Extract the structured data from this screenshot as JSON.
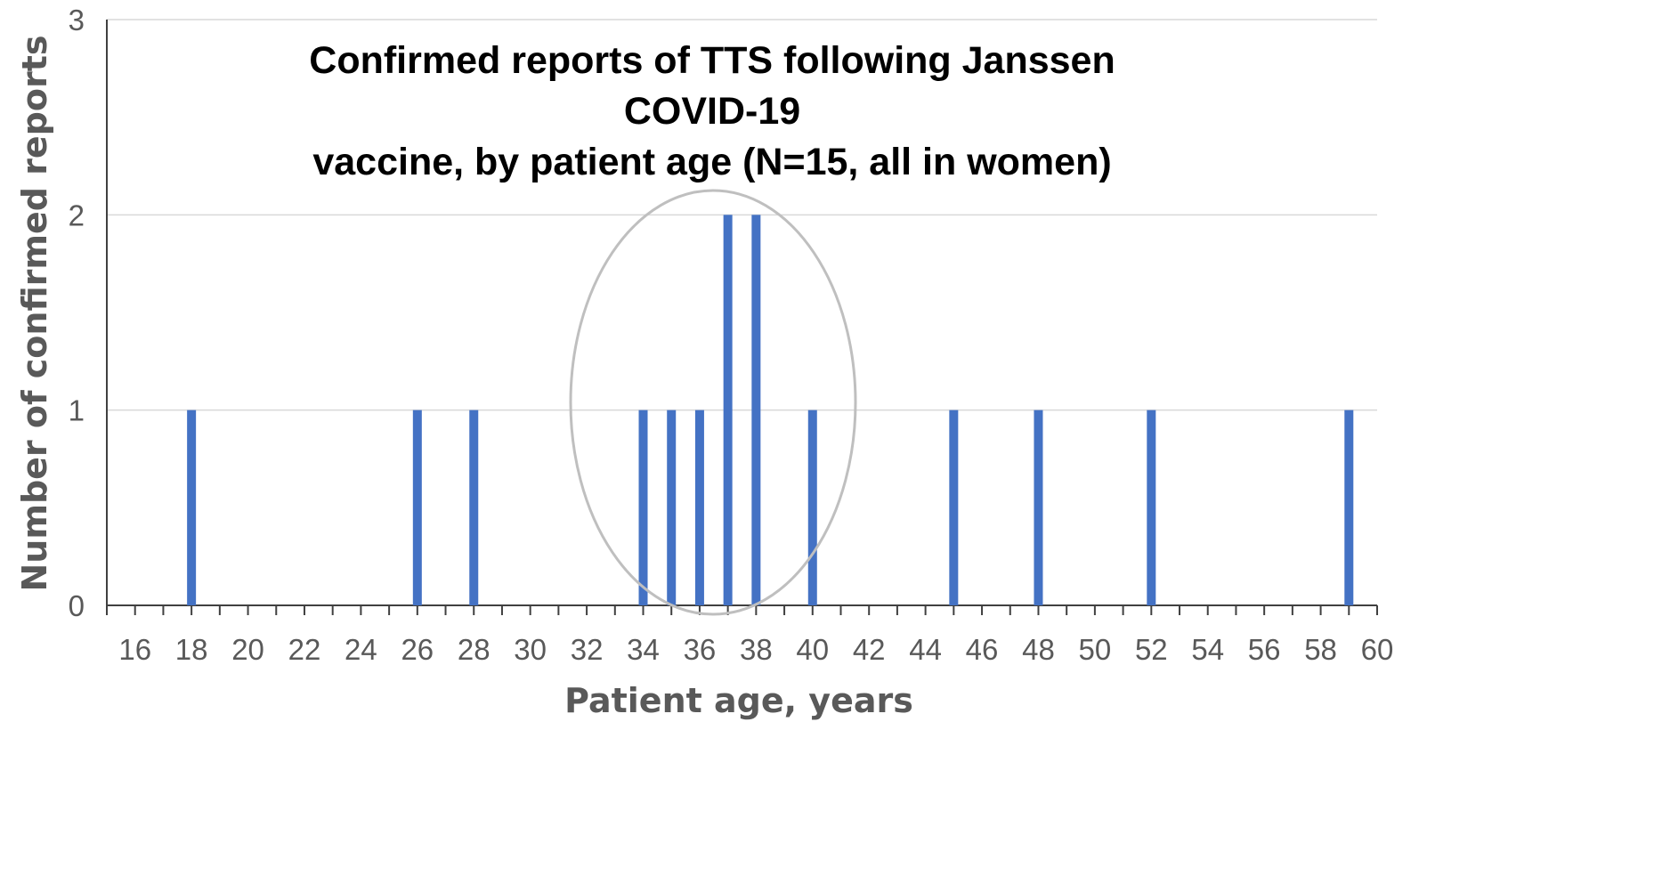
{
  "chart_data": {
    "type": "bar",
    "title_line1": "Confirmed reports of TTS following Janssen COVID-19",
    "title_line2": "vaccine, by patient age (N=15, all in women)",
    "xlabel": "Patient age, years",
    "ylabel": "Number of confirmed reports",
    "xlim": [
      15,
      60
    ],
    "ylim": [
      0,
      3
    ],
    "xticks": [
      16,
      18,
      20,
      22,
      24,
      26,
      28,
      30,
      32,
      34,
      36,
      38,
      40,
      42,
      44,
      46,
      48,
      50,
      52,
      54,
      56,
      58,
      60
    ],
    "yticks": [
      0,
      1,
      2,
      3
    ],
    "grid": true,
    "bar_color": "#4472C4",
    "annotation": "ellipse around ages 34-40",
    "x": [
      18,
      26,
      28,
      34,
      35,
      36,
      37,
      38,
      40,
      45,
      48,
      52,
      59
    ],
    "values": [
      1,
      1,
      1,
      1,
      1,
      1,
      2,
      2,
      1,
      1,
      1,
      1,
      1
    ]
  }
}
